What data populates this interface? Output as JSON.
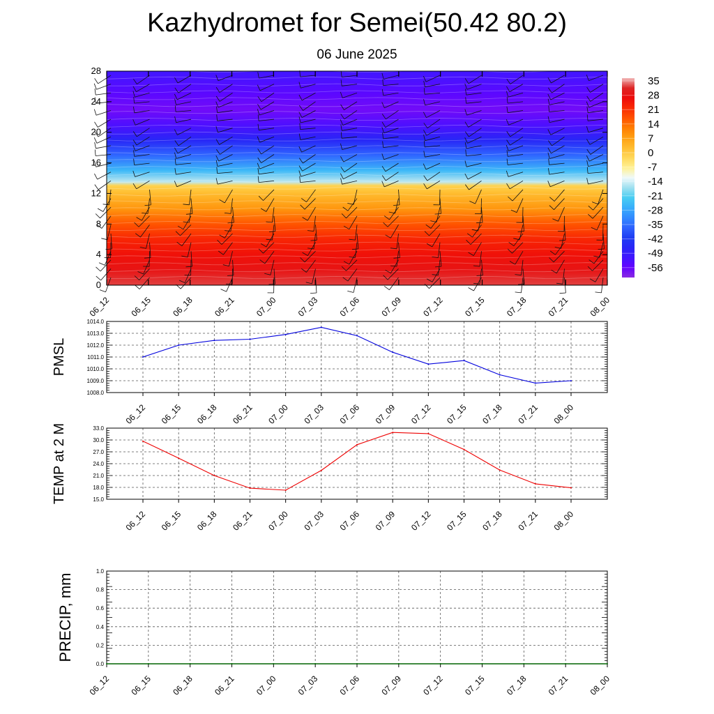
{
  "title": "Kazhydromet for Semei(50.42 80.2)",
  "subtitle": "06 June 2025",
  "colors": {
    "pmsl_line": "#0000dd",
    "temp_line": "#ee0000",
    "precip_line": "#006400",
    "frame": "#000000",
    "grid": "#555555"
  },
  "chart_data": [
    {
      "type": "heatmap",
      "name": "vertical-cross-section",
      "x": [
        "06_12",
        "06_15",
        "06_18",
        "06_21",
        "07_00",
        "07_03",
        "07_06",
        "07_09",
        "07_12",
        "07_15",
        "07_18",
        "07_21",
        "08_00"
      ],
      "y_ticks": [
        0,
        4,
        8,
        12,
        16,
        20,
        24,
        28
      ],
      "ylim": [
        0,
        28
      ],
      "colorbar": {
        "labels": [
          35,
          28,
          21,
          14,
          7,
          0,
          -7,
          -14,
          -21,
          -28,
          -35,
          -42,
          -49,
          -56
        ],
        "range": [
          -60,
          38
        ]
      },
      "temperature_profile": [
        {
          "level": 0,
          "value": 34
        },
        {
          "level": 2,
          "value": 30
        },
        {
          "level": 4,
          "value": 27
        },
        {
          "level": 6,
          "value": 24
        },
        {
          "level": 8,
          "value": 18
        },
        {
          "level": 10,
          "value": 10
        },
        {
          "level": 12,
          "value": 4
        },
        {
          "level": 13,
          "value": 0
        },
        {
          "level": 13.5,
          "value": -14
        },
        {
          "level": 15,
          "value": -24
        },
        {
          "level": 17,
          "value": -35
        },
        {
          "level": 19,
          "value": -45
        },
        {
          "level": 21,
          "value": -52
        },
        {
          "level": 23,
          "value": -57
        },
        {
          "level": 25,
          "value": -54
        },
        {
          "level": 28,
          "value": -50
        }
      ],
      "grid": false,
      "legend": "right"
    },
    {
      "type": "line",
      "name": "pmsl",
      "ylabel": "PMSL",
      "categories": [
        "06_12",
        "06_15",
        "06_18",
        "06_21",
        "07_00",
        "07_03",
        "07_06",
        "07_09",
        "07_12",
        "07_15",
        "07_18",
        "07_21",
        "08_00"
      ],
      "values": [
        1011.0,
        1012.0,
        1012.4,
        1012.5,
        1012.9,
        1013.5,
        1012.8,
        1011.4,
        1010.4,
        1010.7,
        1009.5,
        1008.8,
        1009.0
      ],
      "ylim": [
        1008.0,
        1014.0
      ],
      "y_ticks": [
        "1014.0",
        "1013.0",
        "1012.0",
        "1011.0",
        "1010.0",
        "1009.0",
        "1008.0"
      ],
      "grid": true
    },
    {
      "type": "line",
      "name": "temp-2m",
      "ylabel": "TEMP at 2 M",
      "categories": [
        "06_12",
        "06_15",
        "06_18",
        "06_21",
        "07_00",
        "07_03",
        "07_06",
        "07_09",
        "07_12",
        "07_15",
        "07_18",
        "07_21",
        "08_00"
      ],
      "values": [
        29.7,
        25.4,
        21.0,
        17.8,
        17.3,
        22.3,
        28.8,
        31.9,
        31.6,
        27.6,
        22.4,
        18.9,
        17.9
      ],
      "ylim": [
        15.0,
        33.0
      ],
      "y_ticks": [
        "33.0",
        "30.0",
        "27.0",
        "24.0",
        "21.0",
        "18.0",
        "15.0"
      ],
      "grid": true
    },
    {
      "type": "line",
      "name": "precip",
      "ylabel": "PRECIP, mm",
      "categories": [
        "06_12",
        "06_15",
        "06_18",
        "06_21",
        "07_00",
        "07_03",
        "07_06",
        "07_09",
        "07_12",
        "07_15",
        "07_18",
        "07_21",
        "08_00"
      ],
      "values": [
        0,
        0,
        0,
        0,
        0,
        0,
        0,
        0,
        0,
        0,
        0,
        0,
        0
      ],
      "ylim": [
        0.0,
        1.0
      ],
      "y_ticks": [
        "1.0",
        "0.8",
        "0.6",
        "0.4",
        "0.2",
        "0.0"
      ],
      "grid": true
    }
  ]
}
